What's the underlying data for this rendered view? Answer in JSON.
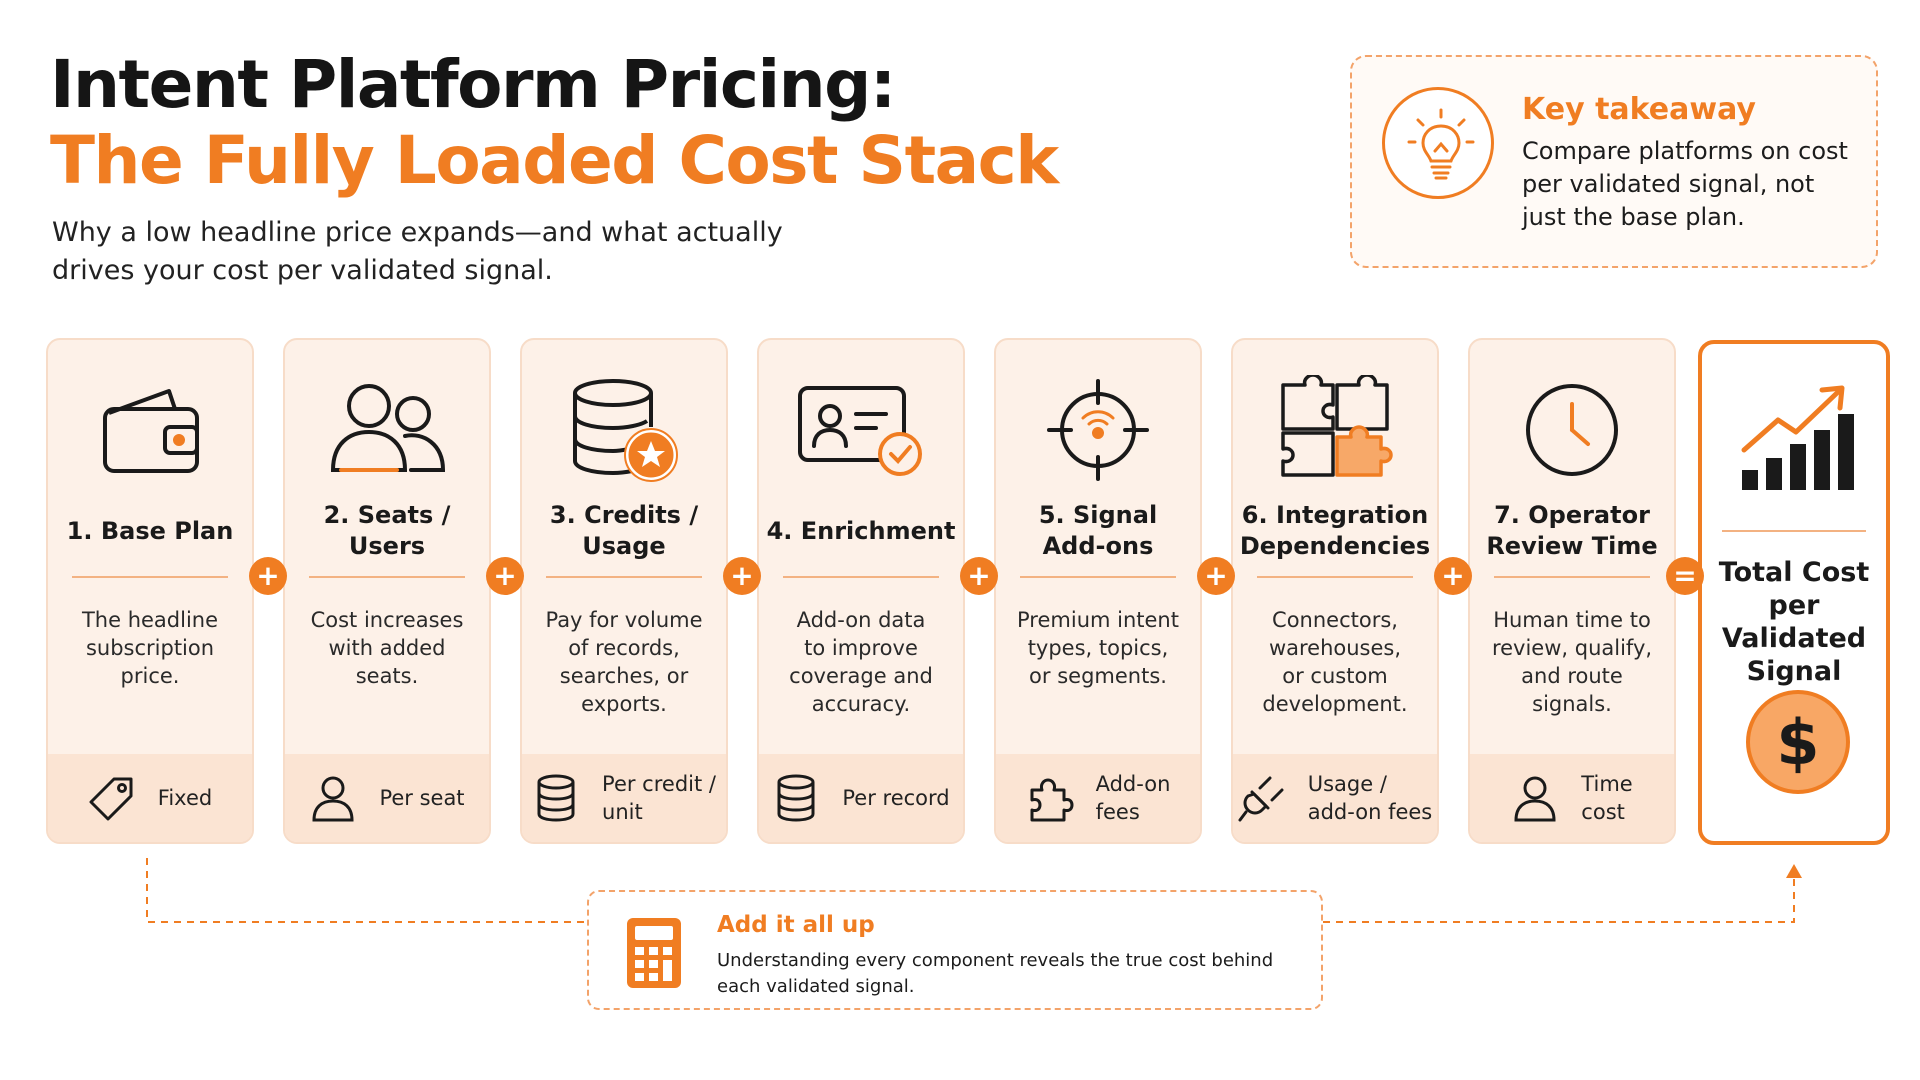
{
  "header": {
    "title_line1": "Intent Platform Pricing:",
    "title_line2": "The Fully Loaded Cost Stack",
    "subtitle": "Why a low headline price expands—and what actually drives your cost per validated signal."
  },
  "takeaway": {
    "icon": "lightbulb-icon",
    "title": "Key takeaway",
    "body": "Compare platforms on cost per validated signal, not just the base plan."
  },
  "cards": [
    {
      "title": "1. Base Plan",
      "desc": "The headline\nsubscription\nprice.",
      "foot": "Fixed",
      "icon": "wallet-icon",
      "foot_icon": "tag-icon"
    },
    {
      "title": "2. Seats / Users",
      "desc": "Cost increases\nwith added\nseats.",
      "foot": "Per seat",
      "icon": "users-icon",
      "foot_icon": "user-icon"
    },
    {
      "title": "3. Credits /\nUsage",
      "desc": "Pay for volume\nof records,\nsearches, or\nexports.",
      "foot": "Per credit /\nunit",
      "icon": "database-star-icon",
      "foot_icon": "database-icon"
    },
    {
      "title": "4. Enrichment",
      "desc": "Add-on data\nto improve\ncoverage and\naccuracy.",
      "foot": "Per record",
      "icon": "id-card-check-icon",
      "foot_icon": "database-icon"
    },
    {
      "title": "5. Signal\nAdd-ons",
      "desc": "Premium intent\ntypes, topics,\nor segments.",
      "foot": "Add-on\nfees",
      "icon": "target-signal-icon",
      "foot_icon": "puzzle-piece-icon"
    },
    {
      "title": "6. Integration\nDependencies",
      "desc": "Connectors,\nwarehouses,\nor custom\ndevelopment.",
      "foot": "Usage /\nadd-on fees",
      "icon": "puzzle-icon",
      "foot_icon": "plug-icon"
    },
    {
      "title": "7. Operator\nReview Time",
      "desc": "Human time to\nreview, qualify,\nand route\nsignals.",
      "foot": "Time\ncost",
      "icon": "clock-icon",
      "foot_icon": "user-icon"
    }
  ],
  "operators": [
    "+",
    "+",
    "+",
    "+",
    "+",
    "+",
    "="
  ],
  "total": {
    "title": "Total Cost\nper Validated\nSignal",
    "symbol": "$",
    "icon": "growth-chart-icon"
  },
  "add_up": {
    "icon": "calculator-icon",
    "title": "Add it all up",
    "body": "Understanding every component reveals the true cost behind each validated signal."
  },
  "colors": {
    "accent": "#f07d22",
    "card_bg": "#fdf1e8",
    "card_footer": "#fbe4d3",
    "dark": "#1a1a1a"
  }
}
